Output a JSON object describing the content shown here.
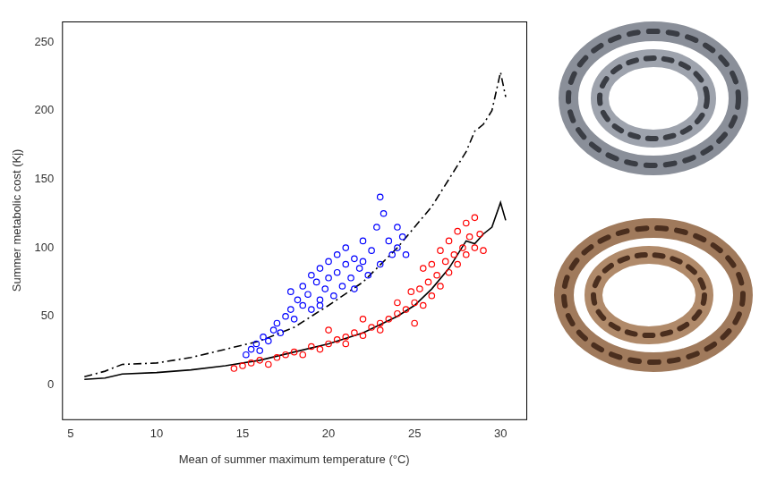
{
  "chart_data": {
    "type": "scatter",
    "x_label": "Mean of summer maximum temperature (°C)",
    "y_label": "Summer metabolic cost (Kj)",
    "xlim": [
      4.5,
      31.5
    ],
    "xticks": [
      5,
      10,
      15,
      20,
      25,
      30
    ],
    "ylim": [
      -25,
      265
    ],
    "yticks": [
      0,
      50,
      100,
      150,
      200,
      250
    ],
    "grid": false,
    "series": [
      {
        "type": "scatter",
        "color": "#0000ff",
        "marker": "open_circle",
        "x": [
          15.2,
          15.5,
          15.8,
          16,
          16.2,
          16.5,
          16.8,
          17,
          17.2,
          17.5,
          17.8,
          17.8,
          18,
          18.2,
          18.5,
          18.5,
          18.8,
          19,
          19,
          19.3,
          19.5,
          19.5,
          19.8,
          20,
          20,
          20.3,
          20.5,
          20.5,
          20.8,
          21,
          21,
          21.3,
          21.5,
          21.8,
          22,
          22,
          22.3,
          22.5,
          22.8,
          23,
          23,
          23.2,
          23.5,
          23.7,
          24,
          24,
          24.3,
          24.5,
          19.5,
          21.5
        ],
        "values": [
          22,
          26,
          30,
          25,
          35,
          32,
          40,
          45,
          38,
          50,
          55,
          68,
          48,
          62,
          58,
          72,
          66,
          80,
          55,
          75,
          85,
          62,
          70,
          90,
          78,
          65,
          95,
          82,
          72,
          88,
          100,
          78,
          92,
          85,
          105,
          90,
          80,
          98,
          115,
          88,
          137,
          125,
          105,
          95,
          115,
          100,
          108,
          95,
          58,
          70
        ]
      },
      {
        "type": "scatter",
        "color": "#ff0000",
        "marker": "open_circle",
        "x": [
          14.5,
          15,
          15.5,
          16,
          16.5,
          17,
          17.5,
          18,
          18.5,
          19,
          19.5,
          20,
          20.5,
          21,
          21.5,
          22,
          22.5,
          23,
          23.5,
          24,
          24.5,
          25,
          25,
          25.3,
          25.5,
          25.8,
          26,
          26,
          26.3,
          26.5,
          26.5,
          26.8,
          27,
          27,
          27.3,
          27.5,
          27.5,
          27.8,
          28,
          28,
          28.2,
          28.5,
          28.5,
          28.8,
          29,
          23,
          24,
          22,
          21,
          20,
          25.5,
          24.8
        ],
        "values": [
          12,
          14,
          16,
          18,
          15,
          20,
          22,
          24,
          22,
          28,
          26,
          30,
          33,
          35,
          38,
          36,
          42,
          45,
          48,
          52,
          55,
          60,
          45,
          70,
          58,
          75,
          65,
          88,
          80,
          72,
          98,
          90,
          82,
          105,
          95,
          112,
          88,
          100,
          118,
          95,
          108,
          122,
          100,
          110,
          98,
          40,
          60,
          48,
          30,
          40,
          85,
          68
        ]
      },
      {
        "type": "line",
        "color": "#000000",
        "line_style": "dashdot",
        "x": [
          5.8,
          7,
          8,
          10,
          12,
          14,
          16,
          18,
          20,
          22,
          24,
          26,
          27,
          28,
          28.5,
          29,
          29.5,
          30,
          30.3
        ],
        "values": [
          6,
          10,
          15,
          16,
          20,
          26,
          32,
          42,
          58,
          75,
          100,
          130,
          150,
          170,
          185,
          190,
          200,
          228,
          210
        ]
      },
      {
        "type": "line",
        "color": "#000000",
        "line_style": "solid",
        "x": [
          5.8,
          7,
          8,
          10,
          12,
          14,
          16,
          18,
          20,
          22,
          24,
          25,
          26,
          27,
          28,
          28.5,
          29,
          29.5,
          30,
          30.3
        ],
        "values": [
          4,
          5,
          8,
          9,
          11,
          14,
          18,
          24,
          30,
          38,
          50,
          58,
          70,
          85,
          105,
          103,
          110,
          115,
          133,
          120
        ]
      }
    ]
  }
}
